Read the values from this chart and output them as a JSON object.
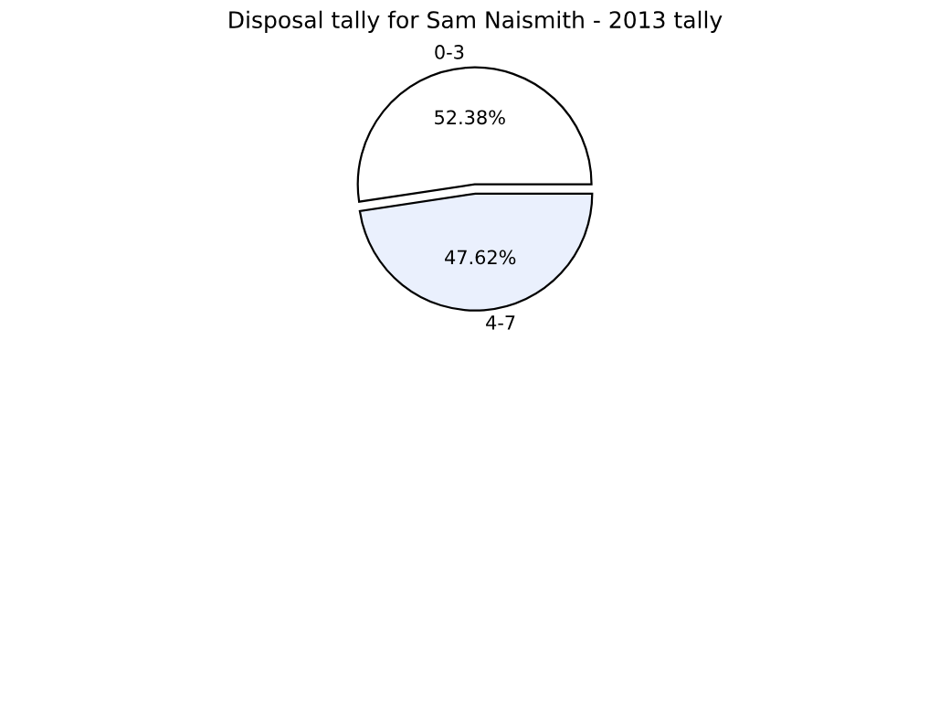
{
  "chart_data": {
    "type": "pie",
    "title": "Disposal tally for Sam Naismith - 2013 tally",
    "categories": [
      "0-3",
      "4-7"
    ],
    "values": [
      52.38,
      47.62
    ],
    "colors": [
      "#ffffff",
      "#eaf0fd"
    ],
    "value_labels": [
      "52.38%",
      "47.62%"
    ],
    "legend": false
  }
}
